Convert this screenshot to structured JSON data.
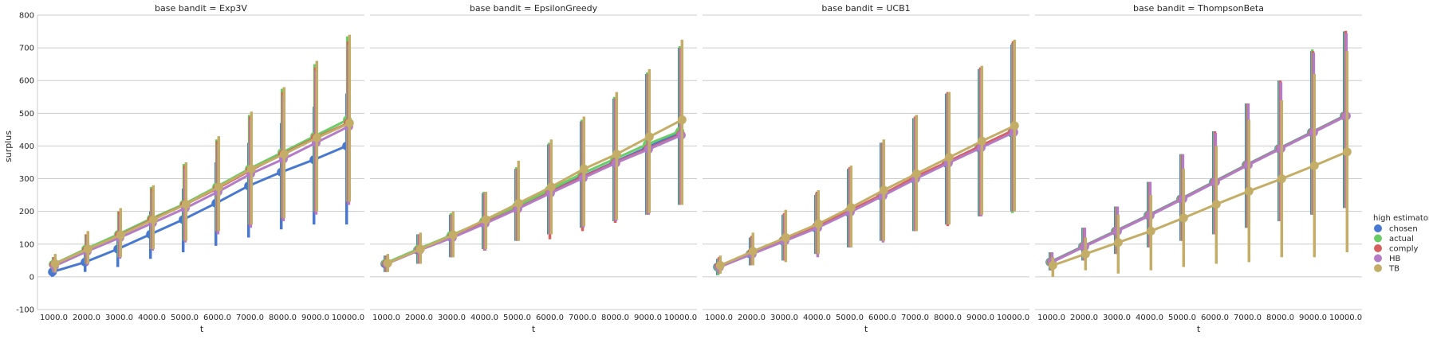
{
  "facet_label": "base bandit",
  "legend": {
    "title": "high estimator",
    "placement": "right"
  },
  "chart_data": {
    "type": "line",
    "kind": "pointplot",
    "xlabel": "t",
    "ylabel": "surplus",
    "ylim": [
      -100,
      800
    ],
    "yticks": [
      -100,
      0,
      100,
      200,
      300,
      400,
      500,
      600,
      700,
      800
    ],
    "grid": "horizontal",
    "categories": [
      "1000.0",
      "2000.0",
      "3000.0",
      "4000.0",
      "5000.0",
      "6000.0",
      "7000.0",
      "8000.0",
      "9000.0",
      "10000.0"
    ],
    "series_names": [
      "chosen",
      "actual",
      "comply",
      "HB",
      "TB"
    ],
    "colors": {
      "chosen": "#4878cf",
      "actual": "#6acc65",
      "comply": "#d65f5f",
      "HB": "#b47cc7",
      "TB": "#c4ad66"
    },
    "panels": [
      {
        "title": "base bandit = Exp3V",
        "series": [
          {
            "name": "chosen",
            "values": [
              15,
              45,
              85,
              130,
              175,
              225,
              278,
              320,
              358,
              400
            ],
            "ci_low": [
              0,
              15,
              30,
              55,
              75,
              95,
              120,
              145,
              160,
              160
            ],
            "ci_high": [
              30,
              75,
              135,
              200,
              270,
              350,
              410,
              470,
              520,
              560
            ]
          },
          {
            "name": "actual",
            "values": [
              38,
              85,
              130,
              178,
              222,
              275,
              330,
              380,
              430,
              480
            ],
            "ci_low": [
              15,
              40,
              60,
              85,
              110,
              140,
              160,
              180,
              200,
              230
            ],
            "ci_high": [
              60,
              130,
              200,
              275,
              345,
              420,
              495,
              575,
              650,
              735
            ]
          },
          {
            "name": "comply",
            "values": [
              36,
              82,
              127,
              175,
              220,
              270,
              325,
              375,
              425,
              470
            ],
            "ci_low": [
              15,
              40,
              60,
              85,
              110,
              135,
              155,
              175,
              195,
              225
            ],
            "ci_high": [
              60,
              130,
              200,
              270,
              340,
              415,
              490,
              565,
              640,
              720
            ]
          },
          {
            "name": "HB",
            "values": [
              33,
              78,
              120,
              165,
              210,
              260,
              315,
              360,
              410,
              460
            ],
            "ci_low": [
              12,
              35,
              55,
              80,
              105,
              130,
              150,
              170,
              190,
              220
            ],
            "ci_high": [
              55,
              125,
              190,
              260,
              330,
              405,
              480,
              555,
              630,
              710
            ]
          },
          {
            "name": "TB",
            "values": [
              40,
              85,
              128,
              175,
              222,
              275,
              330,
              375,
              425,
              470
            ],
            "ci_low": [
              15,
              40,
              60,
              85,
              110,
              140,
              160,
              180,
              200,
              230
            ],
            "ci_high": [
              70,
              140,
              210,
              280,
              350,
              430,
              505,
              580,
              660,
              740
            ]
          }
        ]
      },
      {
        "title": "base bandit = EpsilonGreedy",
        "series": [
          {
            "name": "chosen",
            "values": [
              40,
              82,
              122,
              165,
              210,
              260,
              305,
              350,
              395,
              440
            ],
            "ci_low": [
              15,
              40,
              60,
              85,
              110,
              130,
              150,
              170,
              190,
              220
            ],
            "ci_high": [
              65,
              130,
              190,
              255,
              330,
              405,
              475,
              545,
              620,
              700
            ]
          },
          {
            "name": "actual",
            "values": [
              42,
              85,
              127,
              170,
              215,
              265,
              315,
              360,
              405,
              445
            ],
            "ci_low": [
              15,
              40,
              60,
              85,
              110,
              130,
              150,
              170,
              190,
              220
            ],
            "ci_high": [
              65,
              130,
              195,
              260,
              335,
              410,
              480,
              550,
              625,
              705
            ]
          },
          {
            "name": "comply",
            "values": [
              40,
              82,
              122,
              165,
              208,
              258,
              305,
              350,
              392,
              435
            ],
            "ci_low": [
              15,
              40,
              60,
              80,
              110,
              115,
              140,
              165,
              190,
              220
            ],
            "ci_high": [
              65,
              130,
              190,
              255,
              330,
              405,
              475,
              545,
              620,
              700
            ]
          },
          {
            "name": "HB",
            "values": [
              40,
              82,
              120,
              163,
              208,
              256,
              302,
              348,
              390,
              433
            ],
            "ci_low": [
              15,
              40,
              60,
              80,
              110,
              130,
              150,
              170,
              190,
              220
            ],
            "ci_high": [
              65,
              130,
              190,
              255,
              330,
              405,
              475,
              545,
              620,
              700
            ]
          },
          {
            "name": "TB",
            "values": [
              42,
              85,
              128,
              175,
              225,
              275,
              330,
              375,
              428,
              480
            ],
            "ci_low": [
              15,
              40,
              60,
              85,
              110,
              130,
              155,
              175,
              195,
              220
            ],
            "ci_high": [
              70,
              135,
              200,
              260,
              355,
              420,
              490,
              565,
              635,
              725
            ]
          }
        ]
      },
      {
        "title": "base bandit = UCB1",
        "series": [
          {
            "name": "chosen",
            "values": [
              30,
              70,
              110,
              150,
              198,
              248,
              300,
              348,
              395,
              440
            ],
            "ci_low": [
              5,
              35,
              50,
              70,
              90,
              110,
              140,
              160,
              185,
              200
            ],
            "ci_high": [
              55,
              120,
              190,
              250,
              330,
              410,
              485,
              560,
              635,
              710
            ]
          },
          {
            "name": "actual",
            "values": [
              30,
              72,
              112,
              153,
              200,
              250,
              302,
              350,
              398,
              442
            ],
            "ci_low": [
              5,
              35,
              50,
              70,
              90,
              110,
              140,
              160,
              185,
              195
            ],
            "ci_high": [
              55,
              120,
              190,
              255,
              330,
              410,
              485,
              560,
              635,
              715
            ]
          },
          {
            "name": "comply",
            "values": [
              32,
              73,
              113,
              155,
              202,
              252,
              305,
              352,
              400,
              448
            ],
            "ci_low": [
              10,
              35,
              50,
              70,
              90,
              110,
              140,
              155,
              185,
              200
            ],
            "ci_high": [
              60,
              125,
              195,
              260,
              335,
              410,
              490,
              565,
              640,
              720
            ]
          },
          {
            "name": "HB",
            "values": [
              30,
              70,
              110,
              150,
              198,
              248,
              300,
              348,
              395,
              442
            ],
            "ci_low": [
              10,
              35,
              50,
              60,
              90,
              105,
              140,
              160,
              185,
              200
            ],
            "ci_high": [
              55,
              120,
              190,
              255,
              330,
              410,
              485,
              560,
              635,
              715
            ]
          },
          {
            "name": "TB",
            "values": [
              35,
              78,
              120,
              162,
              212,
              265,
              315,
              365,
              415,
              462
            ],
            "ci_low": [
              10,
              35,
              45,
              70,
              90,
              110,
              140,
              160,
              190,
              200
            ],
            "ci_high": [
              65,
              135,
              205,
              265,
              340,
              420,
              495,
              565,
              645,
              725
            ]
          }
        ]
      },
      {
        "title": "base bandit = ThompsonBeta",
        "series": [
          {
            "name": "chosen",
            "values": [
              45,
              93,
              140,
              188,
              238,
              290,
              342,
              392,
              442,
              492
            ],
            "ci_low": [
              20,
              50,
              70,
              90,
              110,
              130,
              150,
              170,
              190,
              210
            ],
            "ci_high": [
              75,
              150,
              215,
              290,
              375,
              445,
              530,
              600,
              690,
              750
            ]
          },
          {
            "name": "actual",
            "values": [
              45,
              93,
              140,
              188,
              238,
              290,
              342,
              392,
              442,
              492
            ],
            "ci_low": [
              20,
              50,
              70,
              90,
              110,
              130,
              150,
              170,
              190,
              210
            ],
            "ci_high": [
              75,
              150,
              215,
              290,
              375,
              445,
              530,
              600,
              695,
              750
            ]
          },
          {
            "name": "comply",
            "values": [
              45,
              93,
              140,
              188,
              238,
              290,
              342,
              392,
              442,
              492
            ],
            "ci_low": [
              20,
              50,
              70,
              90,
              110,
              130,
              150,
              170,
              190,
              210
            ],
            "ci_high": [
              75,
              150,
              215,
              290,
              375,
              445,
              530,
              600,
              690,
              752
            ]
          },
          {
            "name": "HB",
            "values": [
              45,
              93,
              140,
              188,
              238,
              290,
              342,
              392,
              442,
              492
            ],
            "ci_low": [
              20,
              50,
              70,
              90,
              110,
              130,
              150,
              170,
              190,
              210
            ],
            "ci_high": [
              75,
              150,
              215,
              290,
              375,
              440,
              530,
              595,
              685,
              745
            ]
          },
          {
            "name": "TB",
            "values": [
              35,
              70,
              105,
              140,
              180,
              222,
              262,
              300,
              340,
              382
            ],
            "ci_low": [
              0,
              20,
              10,
              20,
              30,
              40,
              45,
              60,
              60,
              75
            ],
            "ci_high": [
              60,
              120,
              190,
              250,
              330,
              400,
              480,
              540,
              620,
              690
            ]
          }
        ]
      }
    ]
  }
}
